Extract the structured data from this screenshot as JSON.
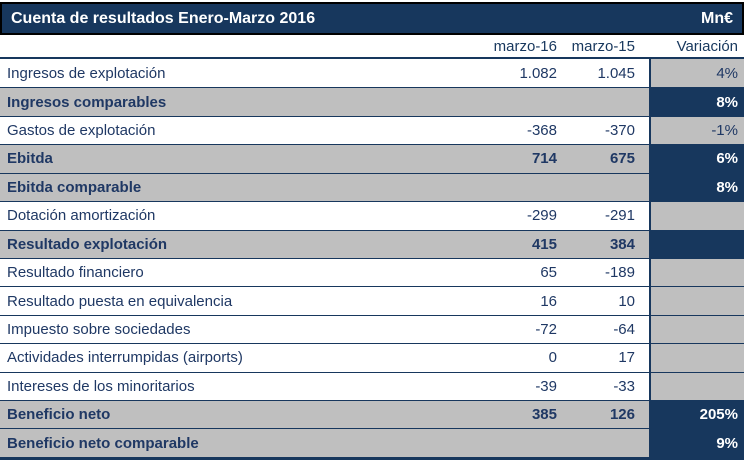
{
  "title": {
    "text": "Cuenta de resultados Enero-Marzo 2016",
    "unit": "Mn€"
  },
  "columns": {
    "period_current": "marzo-16",
    "period_prior": "marzo-15",
    "variation": "Variación"
  },
  "rows": [
    {
      "label": "Ingresos de explotación",
      "v2016": "1.082",
      "v2015": "1.045",
      "variacion": "4%",
      "bold": false
    },
    {
      "label": "Ingresos comparables",
      "v2016": "",
      "v2015": "",
      "variacion": "8%",
      "bold": true
    },
    {
      "label": "Gastos de explotación",
      "v2016": "-368",
      "v2015": "-370",
      "variacion": "-1%",
      "bold": false
    },
    {
      "label": "Ebitda",
      "v2016": "714",
      "v2015": "675",
      "variacion": "6%",
      "bold": true
    },
    {
      "label": "Ebitda comparable",
      "v2016": "",
      "v2015": "",
      "variacion": "8%",
      "bold": true
    },
    {
      "label": "Dotación amortización",
      "v2016": "-299",
      "v2015": "-291",
      "variacion": "",
      "bold": false
    },
    {
      "label": "Resultado explotación",
      "v2016": "415",
      "v2015": "384",
      "variacion": "",
      "bold": true
    },
    {
      "label": "Resultado financiero",
      "v2016": "65",
      "v2015": "-189",
      "variacion": "",
      "bold": false
    },
    {
      "label": "Resultado puesta en equivalencia",
      "v2016": "16",
      "v2015": "10",
      "variacion": "",
      "bold": false
    },
    {
      "label": "Impuesto sobre sociedades",
      "v2016": "-72",
      "v2015": "-64",
      "variacion": "",
      "bold": false
    },
    {
      "label": "Actividades interrumpidas (airports)",
      "v2016": "0",
      "v2015": "17",
      "variacion": "",
      "bold": false
    },
    {
      "label": "Intereses de los minoritarios",
      "v2016": "-39",
      "v2015": "-33",
      "variacion": "",
      "bold": false
    },
    {
      "label": "Beneficio neto",
      "v2016": "385",
      "v2015": "126",
      "variacion": "205%",
      "bold": true
    },
    {
      "label": "Beneficio neto comparable",
      "v2016": "",
      "v2015": "",
      "variacion": "9%",
      "bold": true
    }
  ],
  "colors": {
    "navy": "#17375D",
    "text_navy": "#1F3864",
    "gray": "#BFBFBF",
    "frame_black": "#000000"
  }
}
